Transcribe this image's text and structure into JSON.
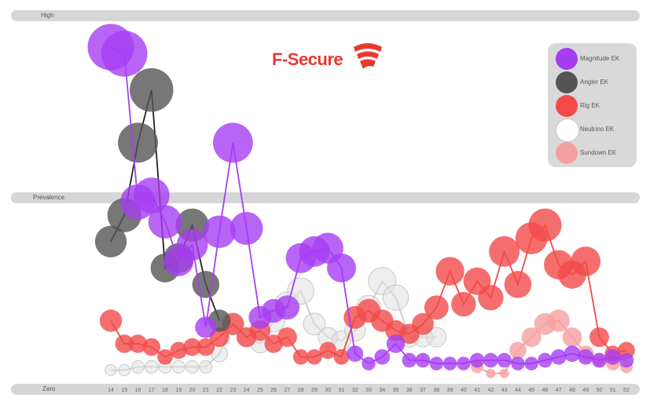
{
  "brand": {
    "name": "F-Secure",
    "color": "#e8382f"
  },
  "bands": {
    "high": "High",
    "mid": "Prevalence",
    "low": "Zero"
  },
  "chart_data": {
    "type": "scatter",
    "x": [
      14,
      15,
      16,
      17,
      18,
      19,
      20,
      21,
      22,
      23,
      24,
      25,
      26,
      27,
      28,
      29,
      30,
      31,
      32,
      33,
      34,
      35,
      36,
      37,
      38,
      39,
      40,
      41,
      42,
      43,
      44,
      45,
      46,
      47,
      48,
      49,
      50,
      51,
      52
    ],
    "series": [
      {
        "name": "Magnitude EK",
        "color": "#a63df2",
        "points": [
          [
            14,
            100
          ],
          [
            15,
            98
          ],
          [
            16,
            53
          ],
          [
            17,
            55
          ],
          [
            18,
            47
          ],
          [
            19,
            35
          ],
          [
            20,
            40
          ],
          [
            21,
            15
          ],
          [
            22,
            44
          ],
          [
            23,
            71
          ],
          [
            24,
            45
          ],
          [
            25,
            18
          ],
          [
            26,
            20
          ],
          [
            27,
            21
          ],
          [
            28,
            36
          ],
          [
            29,
            38
          ],
          [
            30,
            39
          ],
          [
            31,
            33
          ],
          [
            32,
            7
          ],
          [
            33,
            4
          ],
          [
            34,
            6
          ],
          [
            35,
            10
          ],
          [
            36,
            5
          ],
          [
            37,
            5
          ],
          [
            38,
            4
          ],
          [
            39,
            4
          ],
          [
            40,
            4
          ],
          [
            41,
            5
          ],
          [
            42,
            5
          ],
          [
            43,
            5
          ],
          [
            44,
            4
          ],
          [
            45,
            4
          ],
          [
            46,
            5
          ],
          [
            47,
            6
          ],
          [
            48,
            7
          ],
          [
            49,
            6
          ],
          [
            50,
            5
          ],
          [
            51,
            6
          ],
          [
            52,
            5
          ]
        ]
      },
      {
        "name": "Angler EK",
        "color": "#555555",
        "points": [
          [
            14,
            41
          ],
          [
            15,
            49
          ],
          [
            16,
            71
          ],
          [
            17,
            87
          ],
          [
            18,
            33
          ],
          [
            19,
            36
          ],
          [
            20,
            46
          ],
          [
            21,
            28
          ],
          [
            22,
            17
          ]
        ]
      },
      {
        "name": "Rig EK",
        "color": "#f24a4a",
        "points": [
          [
            14,
            17
          ],
          [
            15,
            10
          ],
          [
            16,
            10
          ],
          [
            17,
            9
          ],
          [
            18,
            6
          ],
          [
            19,
            8
          ],
          [
            20,
            9
          ],
          [
            21,
            9
          ],
          [
            22,
            12
          ],
          [
            23,
            16
          ],
          [
            24,
            12
          ],
          [
            25,
            14
          ],
          [
            26,
            10
          ],
          [
            27,
            12
          ],
          [
            28,
            6
          ],
          [
            29,
            6
          ],
          [
            30,
            8
          ],
          [
            31,
            6
          ],
          [
            32,
            18
          ],
          [
            33,
            20
          ],
          [
            34,
            17
          ],
          [
            35,
            14
          ],
          [
            36,
            13
          ],
          [
            37,
            16
          ],
          [
            38,
            21
          ],
          [
            39,
            32
          ],
          [
            40,
            22
          ],
          [
            41,
            29
          ],
          [
            42,
            24
          ],
          [
            43,
            38
          ],
          [
            44,
            28
          ],
          [
            45,
            42
          ],
          [
            46,
            46
          ],
          [
            47,
            34
          ],
          [
            48,
            31
          ],
          [
            49,
            35
          ],
          [
            50,
            12
          ],
          [
            51,
            7
          ],
          [
            52,
            8
          ]
        ]
      },
      {
        "name": "Neutrino EK",
        "color": "#e0e0e0",
        "points": [
          [
            14,
            2
          ],
          [
            15,
            2
          ],
          [
            16,
            3
          ],
          [
            17,
            3
          ],
          [
            18,
            3
          ],
          [
            19,
            3
          ],
          [
            20,
            3
          ],
          [
            21,
            3
          ],
          [
            22,
            7
          ],
          [
            23,
            16
          ],
          [
            24,
            12
          ],
          [
            25,
            10
          ],
          [
            26,
            17
          ],
          [
            27,
            22
          ],
          [
            28,
            26
          ],
          [
            29,
            16
          ],
          [
            30,
            12
          ],
          [
            31,
            11
          ],
          [
            32,
            14
          ],
          [
            33,
            21
          ],
          [
            34,
            29
          ],
          [
            35,
            24
          ],
          [
            36,
            12
          ],
          [
            37,
            12
          ],
          [
            38,
            12
          ]
        ]
      },
      {
        "name": "Sundown EK",
        "color": "#f5a0a0",
        "points": [
          [
            41,
            3
          ],
          [
            42,
            1
          ],
          [
            43,
            1
          ],
          [
            44,
            8
          ],
          [
            45,
            12
          ],
          [
            46,
            16
          ],
          [
            47,
            17
          ],
          [
            48,
            12
          ],
          [
            49,
            7
          ],
          [
            50,
            5
          ],
          [
            51,
            4
          ],
          [
            52,
            3
          ]
        ]
      }
    ],
    "ylim": [
      0,
      100
    ],
    "legend_position": "top-right"
  }
}
